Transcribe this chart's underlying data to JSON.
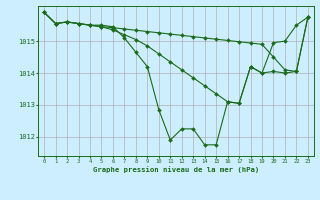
{
  "title": "Graphe pression niveau de la mer (hPa)",
  "bg_color": "#cceeff",
  "grid_color": "#b0b0b0",
  "line_color": "#1a6b1a",
  "xlim": [
    -0.5,
    23.5
  ],
  "ylim": [
    1011.4,
    1016.1
  ],
  "yticks": [
    1012,
    1013,
    1014,
    1015
  ],
  "xticks": [
    0,
    1,
    2,
    3,
    4,
    5,
    6,
    7,
    8,
    9,
    10,
    11,
    12,
    13,
    14,
    15,
    16,
    17,
    18,
    19,
    20,
    21,
    22,
    23
  ],
  "series1": [
    1015.9,
    1015.55,
    1015.6,
    1015.55,
    1015.5,
    1015.5,
    1015.45,
    1015.1,
    1014.65,
    1014.2,
    1012.85,
    1011.9,
    1012.25,
    1012.25,
    1011.75,
    1011.75,
    1013.1,
    1013.05,
    1014.2,
    1014.0,
    1014.95,
    1015.0,
    1015.5,
    1015.75
  ],
  "series2": [
    1015.9,
    1015.55,
    1015.6,
    1015.55,
    1015.5,
    1015.45,
    1015.42,
    1015.38,
    1015.34,
    1015.3,
    1015.26,
    1015.22,
    1015.18,
    1015.14,
    1015.1,
    1015.06,
    1015.02,
    1014.98,
    1014.94,
    1014.9,
    1014.5,
    1014.1,
    1014.05,
    1015.75
  ],
  "series3": [
    1015.9,
    1015.55,
    1015.6,
    1015.55,
    1015.5,
    1015.45,
    1015.35,
    1015.2,
    1015.05,
    1014.85,
    1014.6,
    1014.35,
    1014.1,
    1013.85,
    1013.6,
    1013.35,
    1013.1,
    1013.05,
    1014.2,
    1014.0,
    1014.05,
    1014.0,
    1014.05,
    1015.75
  ]
}
